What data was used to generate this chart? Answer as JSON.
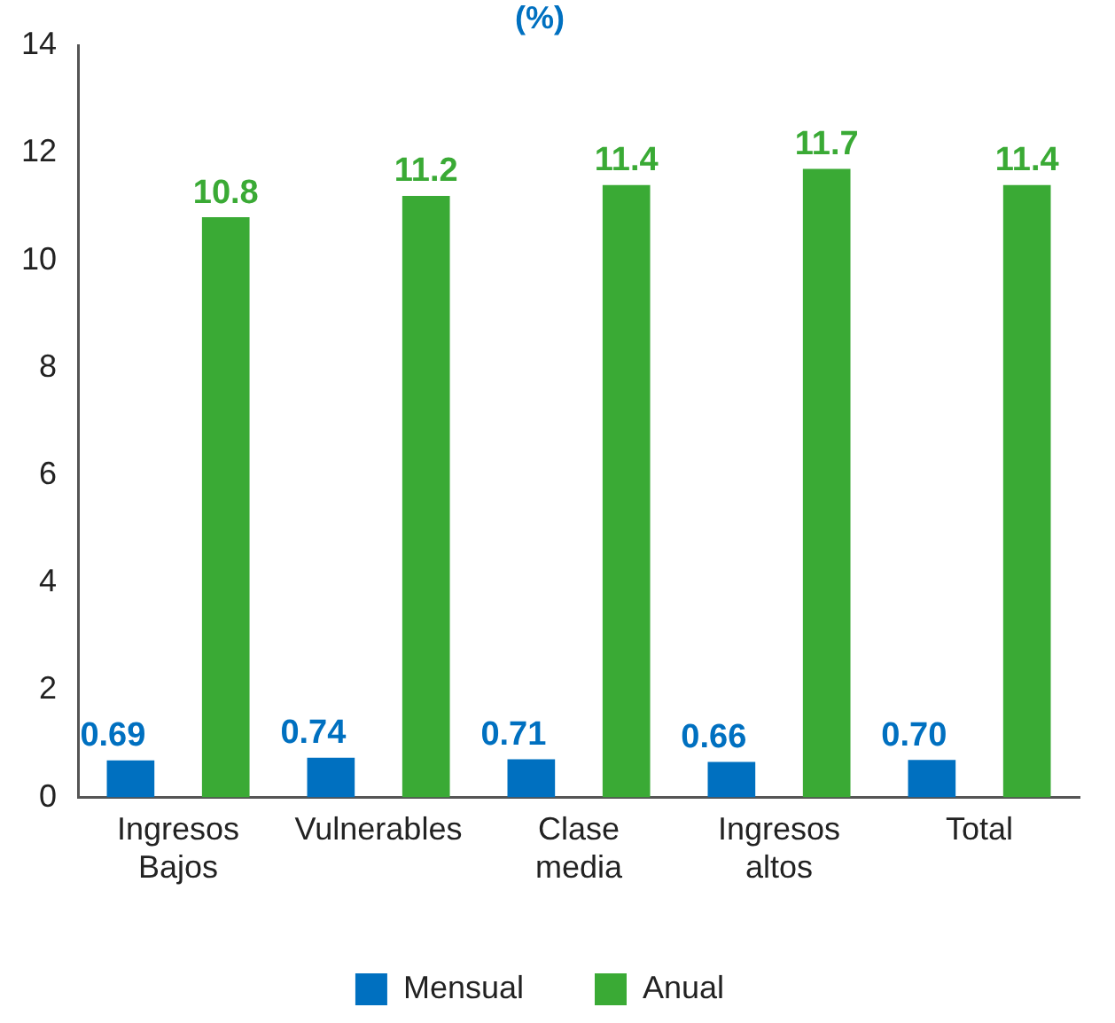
{
  "chart_data": {
    "type": "bar",
    "title": "(%)",
    "categories": [
      "Ingresos Bajos",
      "Vulnerables",
      "Clase media",
      "Ingresos altos",
      "Total"
    ],
    "series": [
      {
        "name": "Mensual",
        "color": "#0070c0",
        "values": [
          0.69,
          0.74,
          0.71,
          0.66,
          0.7
        ],
        "value_labels": [
          "0.69",
          "0.74",
          "0.71",
          "0.66",
          "0.70"
        ]
      },
      {
        "name": "Anual",
        "color": "#3aaa35",
        "values": [
          10.8,
          11.2,
          11.4,
          11.7,
          11.4
        ],
        "value_labels": [
          "10.8",
          "11.2",
          "11.4",
          "11.7",
          "11.4"
        ]
      }
    ],
    "ylim": [
      0,
      14
    ],
    "yticks": [
      0,
      2,
      4,
      6,
      8,
      10,
      12,
      14
    ],
    "grid": false,
    "legend": "bottom"
  }
}
